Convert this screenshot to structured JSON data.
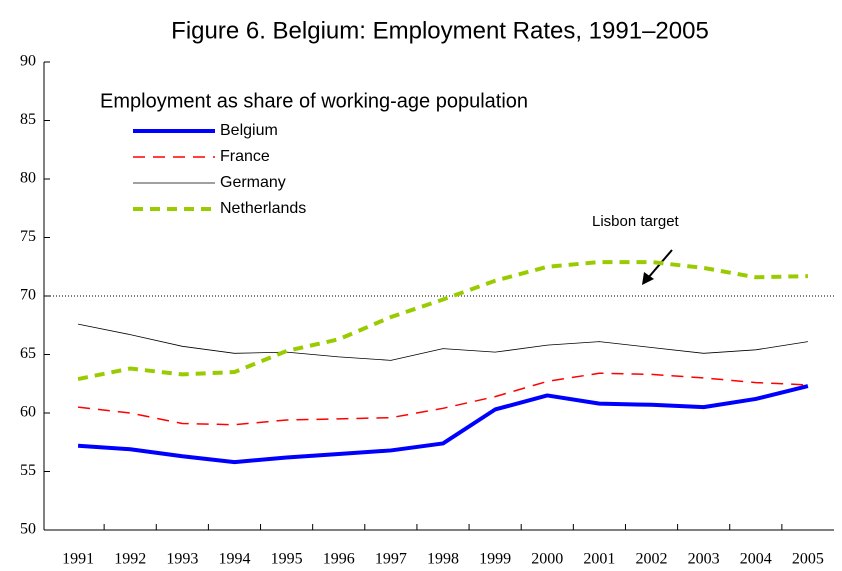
{
  "chart_data": {
    "type": "line",
    "title": "Figure 6. Belgium: Employment Rates, 1991–2005",
    "subtitle": "Employment as share of working-age population",
    "categories": [
      "1991",
      "1992",
      "1993",
      "1994",
      "1995",
      "1996",
      "1997",
      "1998",
      "1999",
      "2000",
      "2001",
      "2002",
      "2003",
      "2004",
      "2005"
    ],
    "series": [
      {
        "name": "Belgium",
        "color": "#0000ff",
        "dash": "solid",
        "width": 4,
        "values": [
          57.2,
          56.9,
          56.3,
          55.8,
          56.2,
          56.5,
          56.8,
          57.4,
          60.3,
          61.5,
          60.8,
          60.7,
          60.5,
          61.2,
          62.3
        ]
      },
      {
        "name": "France",
        "color": "#ff0000",
        "dash": "dashed",
        "width": 1.5,
        "values": [
          60.5,
          60.0,
          59.1,
          59.0,
          59.4,
          59.5,
          59.6,
          60.4,
          61.4,
          62.7,
          63.4,
          63.3,
          63.0,
          62.6,
          62.4
        ]
      },
      {
        "name": "Germany",
        "color": "#000000",
        "dash": "solid",
        "width": 0.8,
        "values": [
          67.6,
          66.7,
          65.7,
          65.1,
          65.2,
          64.8,
          64.5,
          65.5,
          65.2,
          65.8,
          66.1,
          65.6,
          65.1,
          65.4,
          66.1
        ]
      },
      {
        "name": "Netherlands",
        "color": "#99cc00",
        "dash": "dotted",
        "width": 4,
        "values": [
          62.9,
          63.8,
          63.3,
          63.5,
          65.3,
          66.3,
          68.2,
          69.7,
          71.3,
          72.5,
          72.9,
          72.9,
          72.4,
          71.6,
          71.7
        ]
      }
    ],
    "target": {
      "label": "Lisbon target",
      "value": 70
    },
    "ylim": [
      50,
      90
    ],
    "yticks": [
      50,
      55,
      60,
      65,
      70,
      75,
      80,
      85,
      90
    ],
    "grid": false
  }
}
